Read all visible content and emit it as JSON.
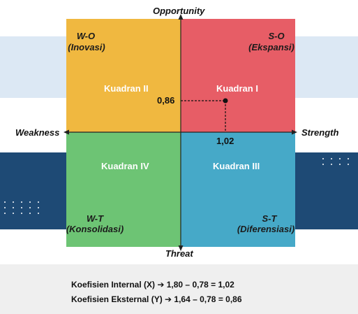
{
  "axes": {
    "top": "Opportunity",
    "bottom": "Threat",
    "left": "Weakness",
    "right": "Strength"
  },
  "quadrants": {
    "wo": {
      "code": "W-O",
      "name": "(Inovasi)",
      "label": "Kuadran II",
      "color": "#f0b840"
    },
    "so": {
      "code": "S-O",
      "name": "(Ekspansi)",
      "label": "Kuadran I",
      "color": "#e75d66"
    },
    "wt": {
      "code": "W-T",
      "name": "(Konsolidasi)",
      "label": "Kuadran IV",
      "color": "#6dc474"
    },
    "st": {
      "code": "S-T",
      "name": "(Diferensiasi)",
      "label": "Kuadran III",
      "color": "#46a9c8"
    }
  },
  "point": {
    "x_label": "1,02",
    "y_label": "0,86",
    "x": 1.02,
    "y": 0.86
  },
  "formulas": [
    "Koefisien Internal (X) ➔ 1,80 – 0,78 = 1,02",
    "Koefisien Eksternal (Y) ➔ 1,64 – 0,78 = 0,86"
  ]
}
